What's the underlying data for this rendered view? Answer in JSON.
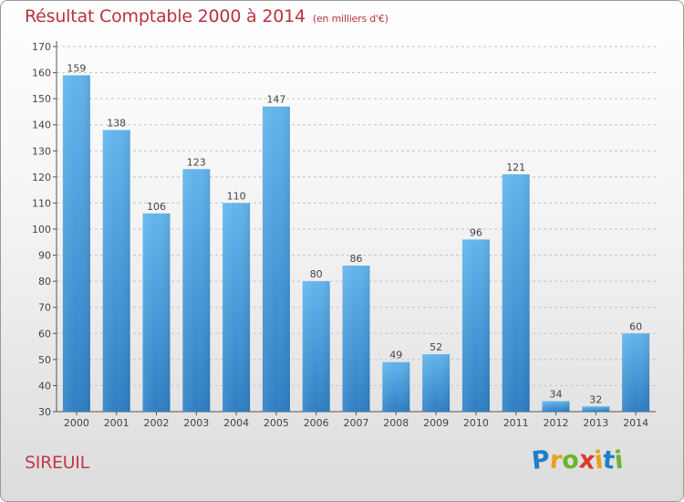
{
  "chart_data": {
    "type": "bar",
    "title": "Résultat Comptable 2000 à 2014",
    "subtitle": "(en milliers d'€)",
    "categories": [
      "2000",
      "2001",
      "2002",
      "2003",
      "2004",
      "2005",
      "2006",
      "2007",
      "2008",
      "2009",
      "2010",
      "2011",
      "2012",
      "2013",
      "2014"
    ],
    "values": [
      159,
      138,
      106,
      123,
      110,
      147,
      80,
      86,
      49,
      52,
      96,
      121,
      34,
      32,
      60
    ],
    "ylim": [
      30,
      170
    ],
    "yticks": [
      30,
      40,
      50,
      60,
      70,
      80,
      90,
      100,
      110,
      120,
      130,
      140,
      150,
      160,
      170
    ],
    "xlabel": "",
    "ylabel": "",
    "grid": "horizontal-dashed",
    "colors": {
      "bar_top": "#62b4ec",
      "bar_bottom": "#2e7fc4",
      "text": "#444444",
      "title": "#b8323e"
    }
  },
  "city": "SIREUIL",
  "logo": {
    "letters": [
      {
        "ch": "P",
        "color": "#1f7fc8"
      },
      {
        "ch": "r",
        "color": "#e8a21a"
      },
      {
        "ch": "o",
        "color": "#6bb52e"
      },
      {
        "ch": "x",
        "color": "#d83a2e"
      },
      {
        "ch": "i",
        "color": "#e8a21a"
      },
      {
        "ch": "t",
        "color": "#1f7fc8"
      },
      {
        "ch": "i",
        "color": "#6bb52e"
      }
    ]
  }
}
